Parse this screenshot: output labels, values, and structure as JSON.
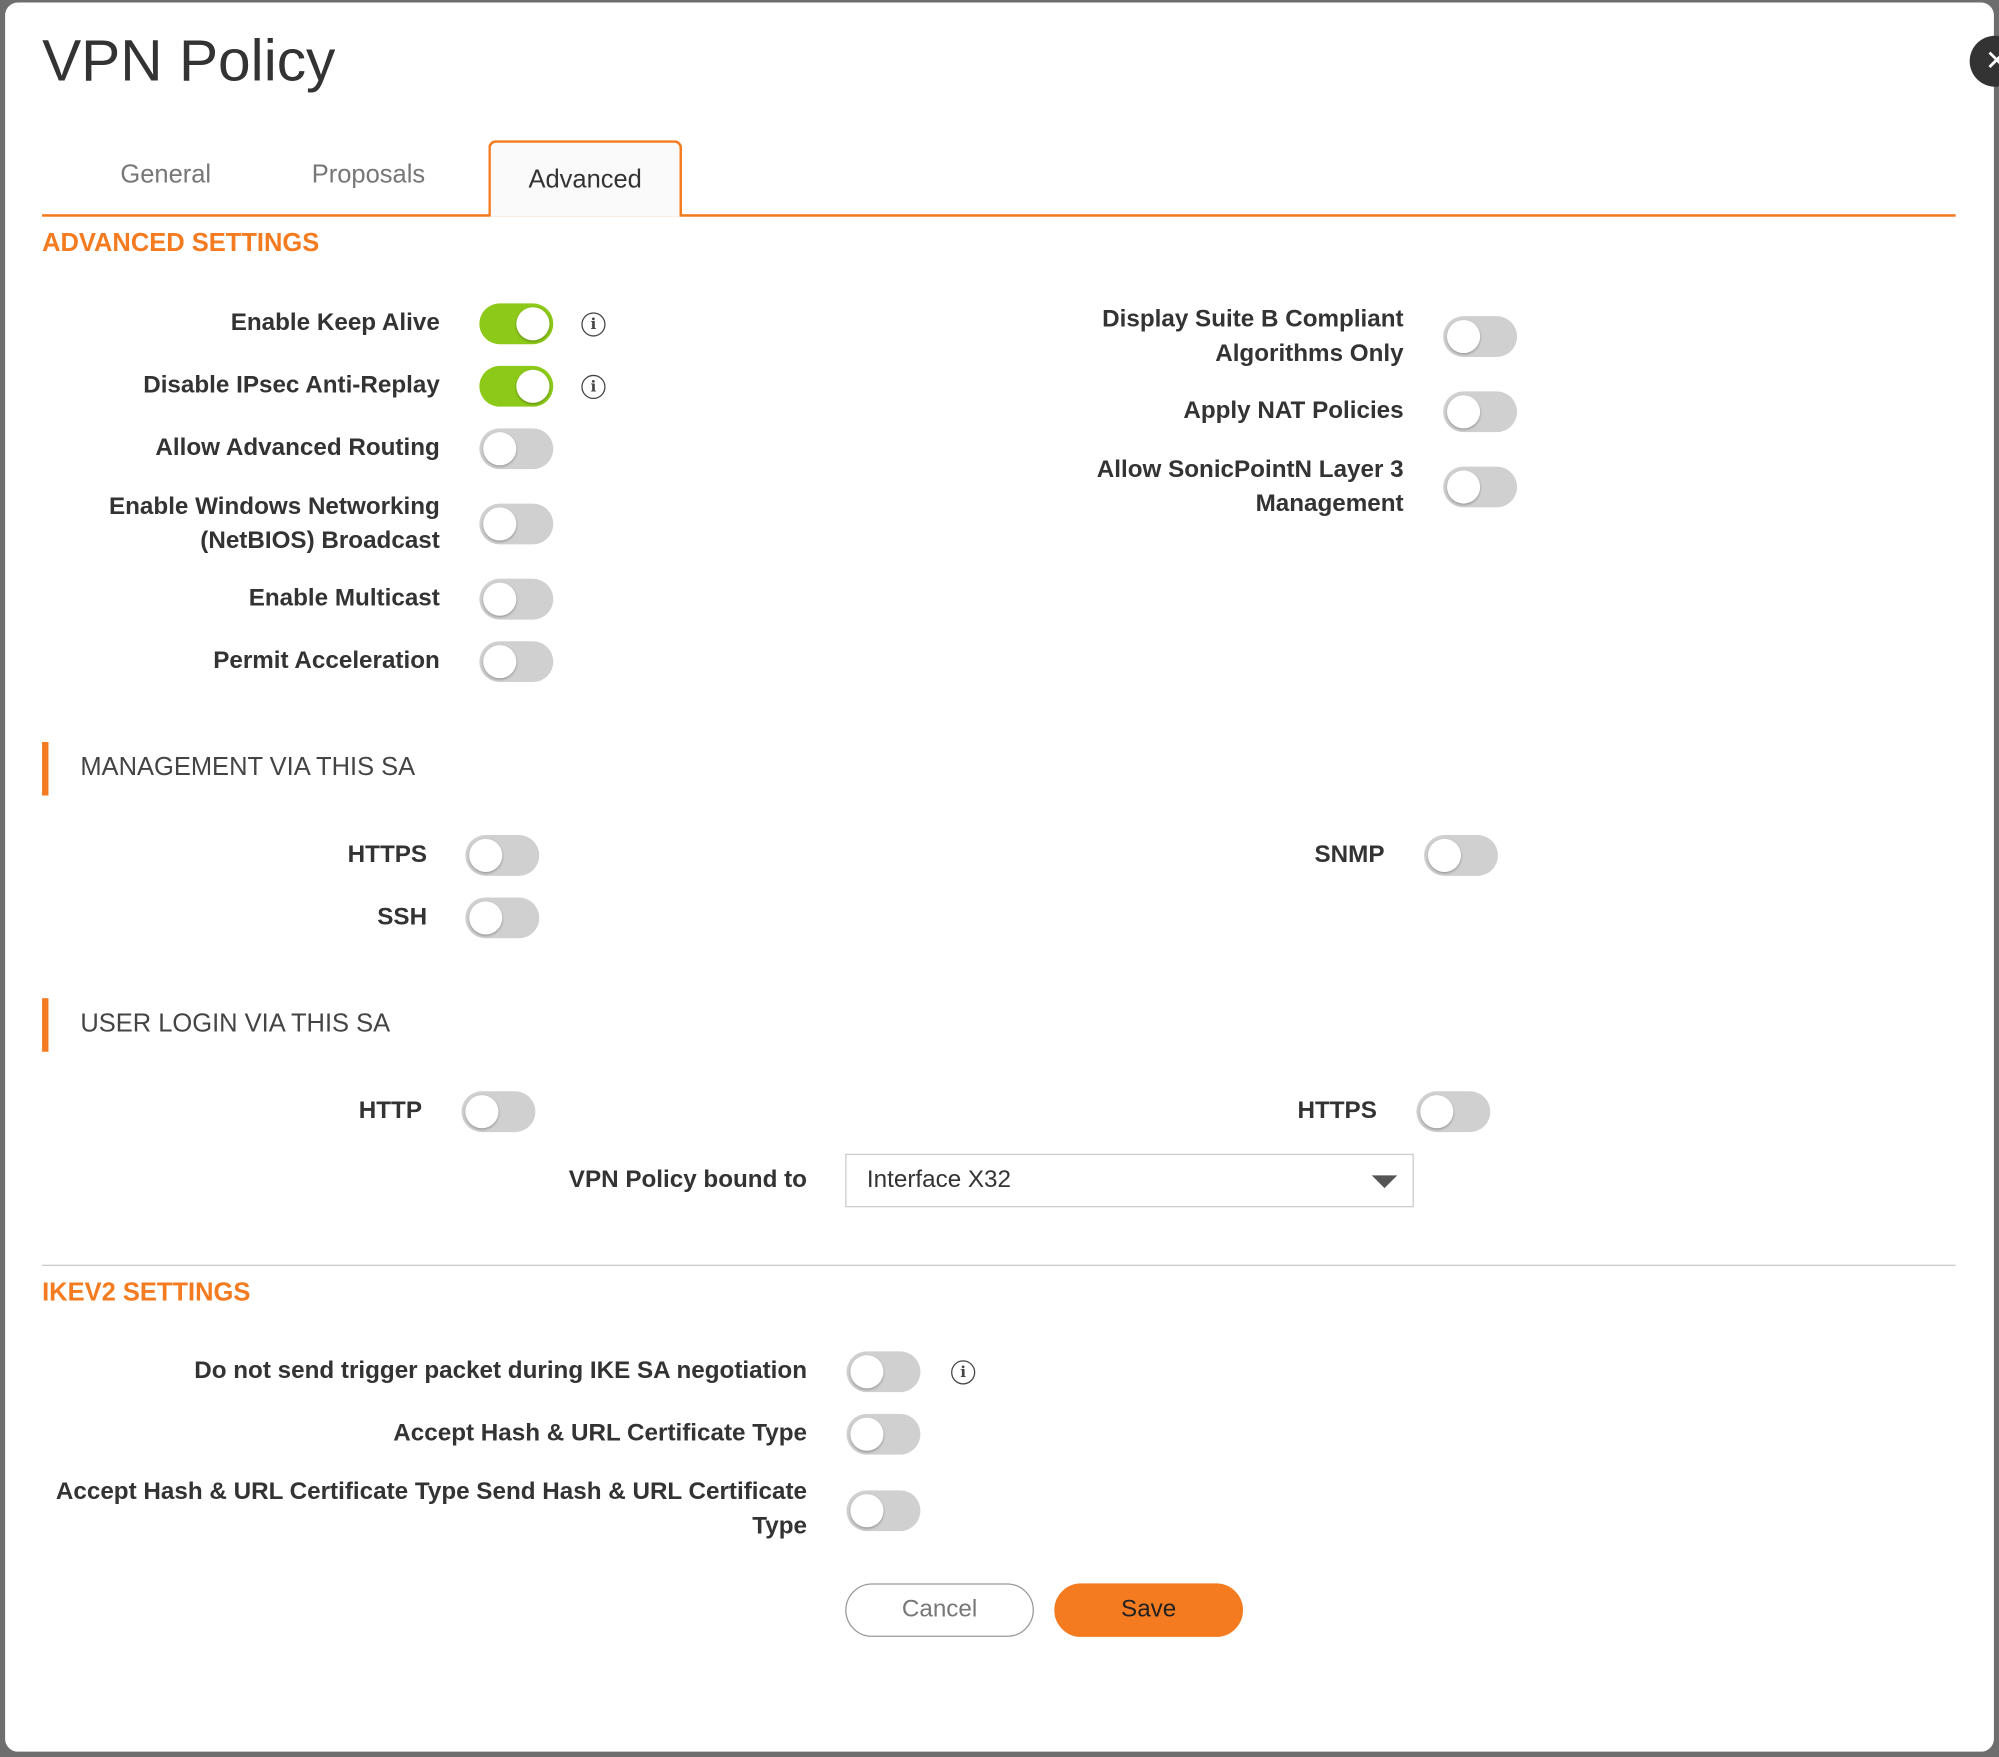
{
  "title": "VPN Policy",
  "tabs": [
    {
      "label": "General"
    },
    {
      "label": "Proposals"
    },
    {
      "label": "Advanced",
      "active": true
    }
  ],
  "advanced": {
    "heading": "ADVANCED SETTINGS",
    "left": [
      {
        "label": "Enable Keep Alive",
        "on": true,
        "info": true
      },
      {
        "label": "Disable IPsec Anti-Replay",
        "on": true,
        "info": true
      },
      {
        "label": "Allow Advanced Routing",
        "on": false
      },
      {
        "label": "Enable Windows Networking (NetBIOS) Broadcast",
        "on": false
      },
      {
        "label": "Enable Multicast",
        "on": false
      },
      {
        "label": "Permit Acceleration",
        "on": false
      }
    ],
    "right": [
      {
        "label": "Display Suite B Compliant Algorithms Only",
        "on": false
      },
      {
        "label": "Apply NAT Policies",
        "on": false
      },
      {
        "label": "Allow SonicPointN Layer 3 Management",
        "on": false
      }
    ]
  },
  "management": {
    "heading": "MANAGEMENT VIA THIS SA",
    "https": {
      "label": "HTTPS",
      "on": false
    },
    "ssh": {
      "label": "SSH",
      "on": false
    },
    "snmp": {
      "label": "SNMP",
      "on": false
    }
  },
  "user_login": {
    "heading": "USER LOGIN VIA THIS SA",
    "http": {
      "label": "HTTP",
      "on": false
    },
    "https": {
      "label": "HTTPS",
      "on": false
    },
    "bound_label": "VPN Policy bound to",
    "bound_value": "Interface X32"
  },
  "ikev2": {
    "heading": "IKEV2 SETTINGS",
    "items": [
      {
        "label": "Do not send trigger packet during IKE SA negotiation",
        "on": false,
        "info": true
      },
      {
        "label": "Accept Hash & URL Certificate Type",
        "on": false
      },
      {
        "label": "Accept Hash & URL Certificate Type Send Hash & URL Certificate Type",
        "on": false
      }
    ]
  },
  "buttons": {
    "cancel": "Cancel",
    "save": "Save"
  },
  "colors": {
    "accent": "#f47b20",
    "toggle_on": "#8cc919",
    "toggle_off": "#d0d0d0"
  },
  "icons": {
    "info": "info-circle-icon",
    "close": "close-icon",
    "dropdown": "caret-down-icon"
  }
}
